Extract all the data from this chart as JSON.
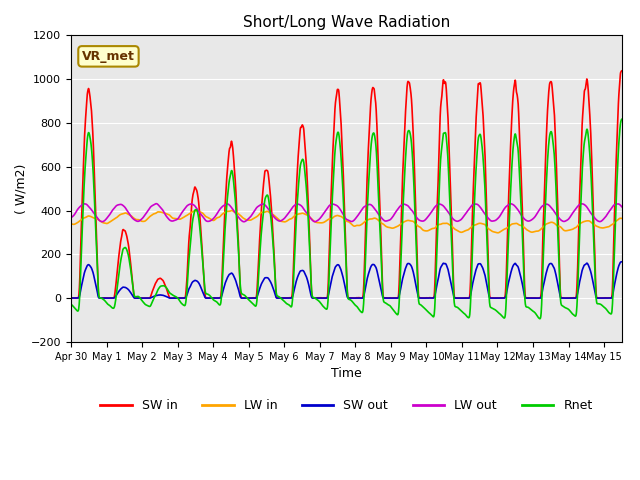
{
  "title": "Short/Long Wave Radiation",
  "xlabel": "Time",
  "ylabel": "( W/m2)",
  "ylim": [
    -200,
    1200
  ],
  "xlim_days": 15.5,
  "background_color": "#ffffff",
  "plot_bg_color": "#e8e8e8",
  "colors": {
    "SW_in": "#ff0000",
    "LW_in": "#ffa500",
    "SW_out": "#0000cc",
    "LW_out": "#cc00cc",
    "Rnet": "#00cc00"
  },
  "legend_labels": [
    "SW in",
    "LW in",
    "SW out",
    "LW out",
    "Rnet"
  ],
  "annotation_text": "VR_met",
  "yticks": [
    -200,
    0,
    200,
    400,
    600,
    800,
    1000,
    1200
  ],
  "x_tick_labels": [
    "Apr 30",
    "May 1",
    "May 2",
    "May 3",
    "May 4",
    "May 5",
    "May 6",
    "May 7",
    "May 8",
    "May 9",
    "May 10",
    "May 11",
    "May 12",
    "May 13",
    "May 14",
    "May 15"
  ],
  "n_days": 16,
  "pts_per_day": 144,
  "line_width": 1.2
}
